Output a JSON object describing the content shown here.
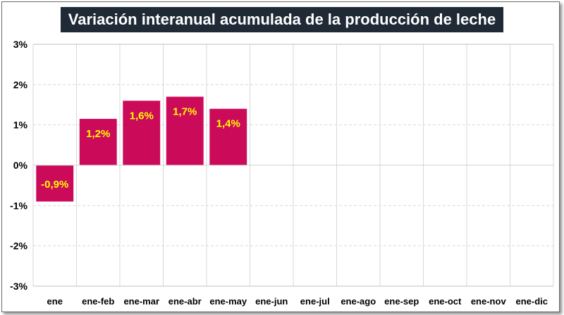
{
  "chart_data": {
    "type": "bar",
    "title": "Variación interanual acumulada de la producción de leche",
    "xlabel": "",
    "ylabel": "",
    "categories": [
      "ene",
      "ene-feb",
      "ene-mar",
      "ene-abr",
      "ene-may",
      "ene-jun",
      "ene-jul",
      "ene-ago",
      "ene-sep",
      "ene-oct",
      "ene-nov",
      "ene-dic"
    ],
    "values": [
      -0.9,
      1.15,
      1.6,
      1.7,
      1.4,
      null,
      null,
      null,
      null,
      null,
      null,
      null
    ],
    "data_labels": [
      "-0,9%",
      "1,2%",
      "1,6%",
      "1,7%",
      "1,4%",
      "",
      "",
      "",
      "",
      "",
      "",
      ""
    ],
    "ylim": [
      -3,
      3
    ],
    "yticks": [
      3,
      2,
      1,
      0,
      -1,
      -2,
      -3
    ],
    "ytick_labels": [
      "3%",
      "2%",
      "1%",
      "0%",
      "-1%",
      "-2%",
      "-3%"
    ],
    "grid": true,
    "colors": {
      "bar": "#cc0a5a",
      "label": "#ffff00",
      "title_bg": "#1f2a36",
      "title_text": "#ffffff",
      "grid": "#d9d9d9"
    }
  }
}
